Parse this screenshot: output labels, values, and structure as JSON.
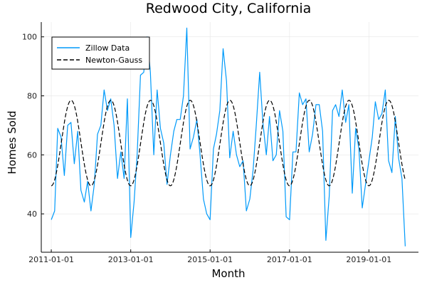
{
  "chart_data": {
    "type": "line",
    "title": "Redwood City, California",
    "xlabel": "Month",
    "ylabel": "Homes Sold",
    "xlim": [
      "2010-10-01",
      "2020-04-01"
    ],
    "ylim": [
      27,
      105
    ],
    "x_ticks": [
      "2011-01-01",
      "2013-01-01",
      "2015-01-01",
      "2017-01-01",
      "2019-01-01"
    ],
    "y_ticks": [
      40,
      60,
      80,
      100
    ],
    "grid": true,
    "legend_position": "top-left",
    "series": [
      {
        "name": "Zillow Data",
        "style": "solid",
        "color": "#009AFA",
        "x": [
          "2011-01-01",
          "2011-02-01",
          "2011-03-01",
          "2011-04-01",
          "2011-05-01",
          "2011-06-01",
          "2011-07-01",
          "2011-08-01",
          "2011-09-01",
          "2011-10-01",
          "2011-11-01",
          "2011-12-01",
          "2012-01-01",
          "2012-02-01",
          "2012-03-01",
          "2012-04-01",
          "2012-05-01",
          "2012-06-01",
          "2012-07-01",
          "2012-08-01",
          "2012-09-01",
          "2012-10-01",
          "2012-11-01",
          "2012-12-01",
          "2013-01-01",
          "2013-02-01",
          "2013-03-01",
          "2013-04-01",
          "2013-05-01",
          "2013-06-01",
          "2013-07-01",
          "2013-08-01",
          "2013-09-01",
          "2013-10-01",
          "2013-11-01",
          "2013-12-01",
          "2014-01-01",
          "2014-02-01",
          "2014-03-01",
          "2014-04-01",
          "2014-05-01",
          "2014-06-01",
          "2014-07-01",
          "2014-08-01",
          "2014-09-01",
          "2014-10-01",
          "2014-11-01",
          "2014-12-01",
          "2015-01-01",
          "2015-02-01",
          "2015-03-01",
          "2015-04-01",
          "2015-05-01",
          "2015-06-01",
          "2015-07-01",
          "2015-08-01",
          "2015-09-01",
          "2015-10-01",
          "2015-11-01",
          "2015-12-01",
          "2016-01-01",
          "2016-02-01",
          "2016-03-01",
          "2016-04-01",
          "2016-05-01",
          "2016-06-01",
          "2016-07-01",
          "2016-08-01",
          "2016-09-01",
          "2016-10-01",
          "2016-11-01",
          "2016-12-01",
          "2017-01-01",
          "2017-02-01",
          "2017-03-01",
          "2017-04-01",
          "2017-05-01",
          "2017-06-01",
          "2017-07-01",
          "2017-08-01",
          "2017-09-01",
          "2017-10-01",
          "2017-11-01",
          "2017-12-01",
          "2018-01-01",
          "2018-02-01",
          "2018-03-01",
          "2018-04-01",
          "2018-05-01",
          "2018-06-01",
          "2018-07-01",
          "2018-08-01",
          "2018-09-01",
          "2018-10-01",
          "2018-11-01",
          "2018-12-01",
          "2019-01-01",
          "2019-02-01",
          "2019-03-01",
          "2019-04-01",
          "2019-05-01",
          "2019-06-01",
          "2019-07-01",
          "2019-08-01",
          "2019-09-01",
          "2019-10-01",
          "2019-11-01",
          "2019-12-01"
        ],
        "values": [
          38,
          41,
          69,
          66,
          53,
          70,
          71,
          57,
          68,
          48,
          44,
          51,
          41,
          50,
          67,
          70,
          82,
          75,
          79,
          70,
          52,
          61,
          52,
          79,
          32,
          44,
          60,
          87,
          88,
          100,
          88,
          60,
          82,
          69,
          64,
          50,
          60,
          68,
          72,
          72,
          80,
          103,
          62,
          66,
          72,
          60,
          45,
          40,
          38,
          62,
          67,
          75,
          96,
          85,
          59,
          68,
          60,
          56,
          58,
          41,
          45,
          55,
          70,
          88,
          71,
          60,
          73,
          58,
          60,
          75,
          68,
          39,
          38,
          61,
          61,
          81,
          77,
          79,
          61,
          67,
          77,
          77,
          68,
          31,
          46,
          75,
          77,
          73,
          82,
          71,
          77,
          47,
          69,
          62,
          42,
          50,
          58,
          66,
          78,
          72,
          74,
          82,
          58,
          54,
          73,
          59,
          52,
          29
        ]
      },
      {
        "name": "Newton-Gauss",
        "style": "dashed",
        "color": "#000000",
        "model": "sinusoid",
        "mean": 64,
        "amplitude": 14.5,
        "period_months": 12,
        "start_month": "2011-01-01",
        "end_month": "2019-12-01"
      }
    ]
  }
}
